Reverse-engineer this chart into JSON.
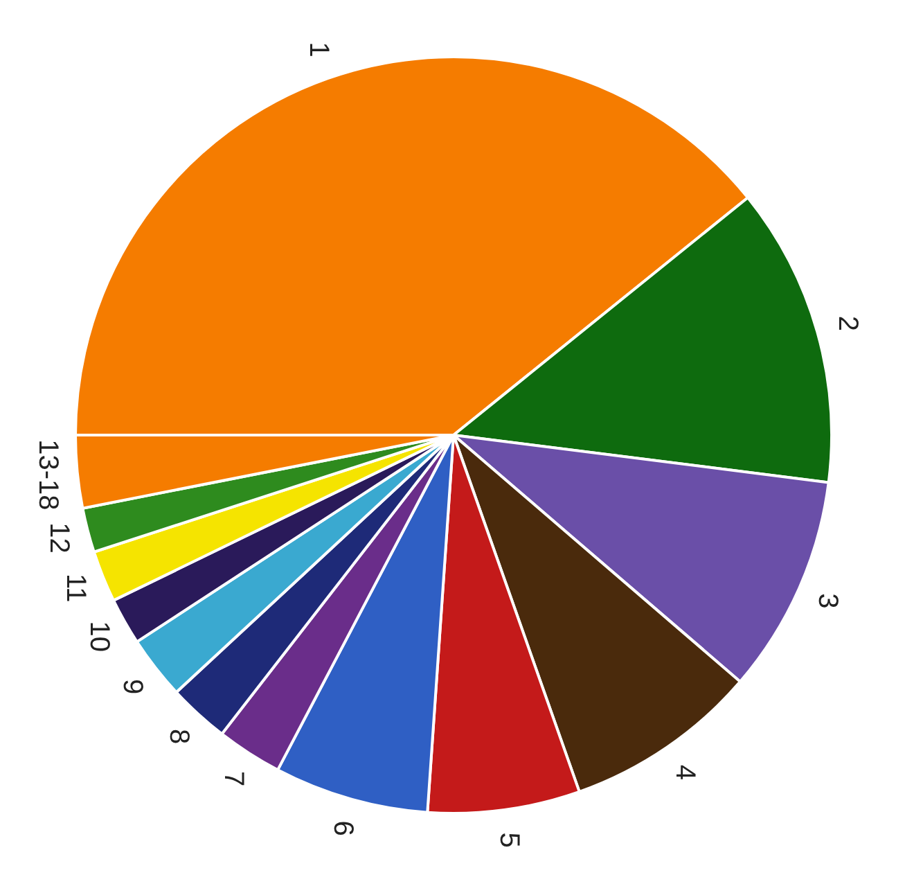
{
  "chart_data": {
    "type": "pie",
    "categories": [
      "1",
      "2",
      "3",
      "4",
      "5",
      "6",
      "7",
      "8",
      "9",
      "10",
      "11",
      "12",
      "13-18"
    ],
    "values": [
      39.2,
      12.8,
      9.3,
      8.3,
      6.5,
      6.6,
      2.8,
      2.6,
      2.7,
      2.0,
      2.2,
      1.9,
      3.1
    ],
    "colors": [
      "#f57c00",
      "#0e6b0e",
      "#6a4fa8",
      "#4a2a0c",
      "#c41a1a",
      "#2f5fc4",
      "#6a2d8a",
      "#1e2a78",
      "#3aa9d0",
      "#2a1a5a",
      "#f5e400",
      "#2e8b1e",
      "#f57c00"
    ]
  }
}
